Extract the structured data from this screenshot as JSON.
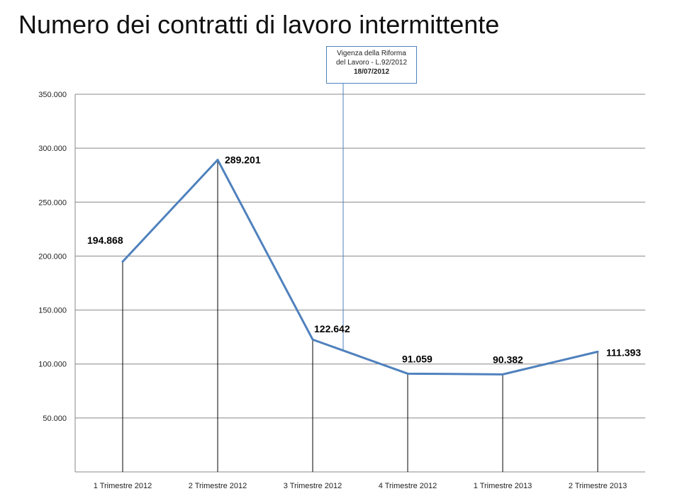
{
  "title": "Numero dei contratti di lavoro intermittente",
  "annotation": {
    "line1": "Vigenza della Riforma",
    "line2": "del Lavoro - L.92/2012",
    "date": "18/07/2012",
    "position_between": [
      "3 Trimestre 2012",
      "4 Trimestre 2012"
    ]
  },
  "colors": {
    "series": "#4f81bd",
    "gridline": "#888888",
    "drop_line": "#000000",
    "annotation_border": "#4f81bd"
  },
  "chart_data": {
    "type": "line",
    "title": "Numero dei contratti di lavoro intermittente",
    "xlabel": "",
    "ylabel": "",
    "categories": [
      "1 Trimestre 2012",
      "2 Trimestre 2012",
      "3 Trimestre 2012",
      "4 Trimestre 2012",
      "1 Trimestre 2013",
      "2 Trimestre 2013"
    ],
    "values": [
      194868,
      289201,
      122642,
      91059,
      90382,
      111393
    ],
    "value_labels": [
      "194.868",
      "289.201",
      "122.642",
      "91.059",
      "90.382",
      "111.393"
    ],
    "ylim": [
      0,
      350000
    ],
    "yticks": [
      50000,
      100000,
      150000,
      200000,
      250000,
      300000,
      350000
    ],
    "ytick_labels": [
      "50.000",
      "100.000",
      "150.000",
      "200.000",
      "250.000",
      "300.000",
      "350.000"
    ],
    "grid": true,
    "drop_lines": true,
    "legend": "none"
  }
}
